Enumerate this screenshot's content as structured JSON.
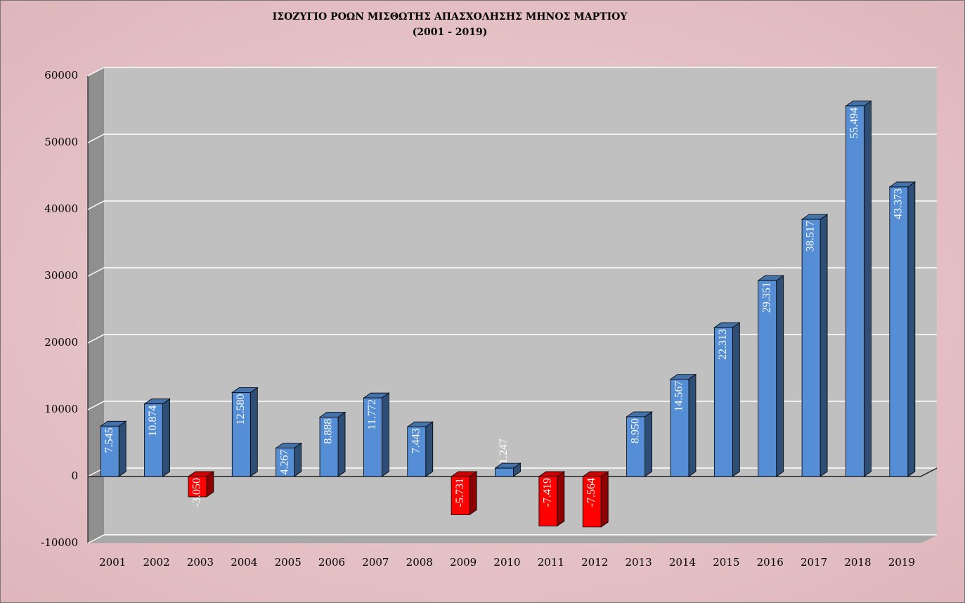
{
  "chart_data": {
    "type": "bar",
    "title": "ΙΣΟΖΥΓΙΟ ΡΟΩΝ ΜΙΣΘΩΤΗΣ ΑΠΑΣΧΟΛΗΣΗΣ ΜΗΝΟΣ  ΜΑΡΤΙΟΥ",
    "subtitle": "(2001 - 2019)",
    "categories": [
      "2001",
      "2002",
      "2003",
      "2004",
      "2005",
      "2006",
      "2007",
      "2008",
      "2009",
      "2010",
      "2011",
      "2012",
      "2013",
      "2014",
      "2015",
      "2016",
      "2017",
      "2018",
      "2019"
    ],
    "values": [
      7545,
      10874,
      -3050,
      12580,
      4267,
      8888,
      11772,
      7443,
      -5731,
      1247,
      -7419,
      -7564,
      8950,
      14567,
      22313,
      29351,
      38517,
      55494,
      43373
    ],
    "value_labels": [
      "7.545",
      "10.874",
      "-3.050",
      "12.580",
      "4.267",
      "8.888",
      "11.772",
      "7.443",
      "-5.731",
      "1.247",
      "-7.419",
      "-7.564",
      "8.950",
      "14.567",
      "22.313",
      "29.351",
      "38.517",
      "55.494",
      "43.373"
    ],
    "color": "#558ed5",
    "negative_color": "#ff0000",
    "ylim": [
      -10000,
      60000
    ],
    "yticks": [
      -10000,
      0,
      10000,
      20000,
      30000,
      40000,
      50000,
      60000
    ],
    "grid": true
  }
}
